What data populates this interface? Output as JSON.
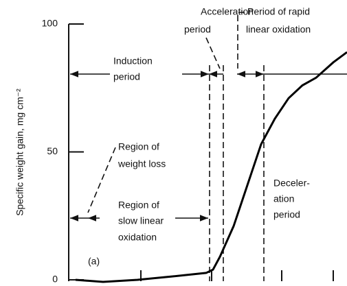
{
  "chart_data": {
    "type": "line",
    "ylabel": "Specific weight gain,  mg cm⁻²",
    "x": [
      0,
      0.4,
      0.9,
      1.4,
      1.9,
      2.0,
      2.1,
      2.3,
      2.5,
      2.7,
      2.9,
      3.1,
      3.3,
      3.5,
      3.75,
      3.95
    ],
    "series": [
      {
        "color": "#000000",
        "values": [
          0,
          -0.8,
          0,
          1.3,
          2.7,
          4,
          9,
          21,
          37,
          53,
          63,
          71,
          76,
          79,
          85,
          89
        ]
      }
    ],
    "xlim": [
      0,
      3.95
    ],
    "xticks": [
      0.95,
      1.98,
      3.0,
      3.75
    ],
    "ylim": [
      0,
      100
    ],
    "yticks": [
      0,
      50,
      100
    ],
    "panel_label": "(a)",
    "annotations": [
      [
        "Acceleration",
        "period"
      ],
      [
        "Period of rapid",
        "linear oxidation"
      ],
      [
        "Induction",
        "period"
      ],
      [
        "Region of",
        "weight loss"
      ],
      [
        "Region of",
        "slow linear",
        "oxidation"
      ],
      [
        "Deceler-",
        "ation",
        "period"
      ]
    ]
  }
}
